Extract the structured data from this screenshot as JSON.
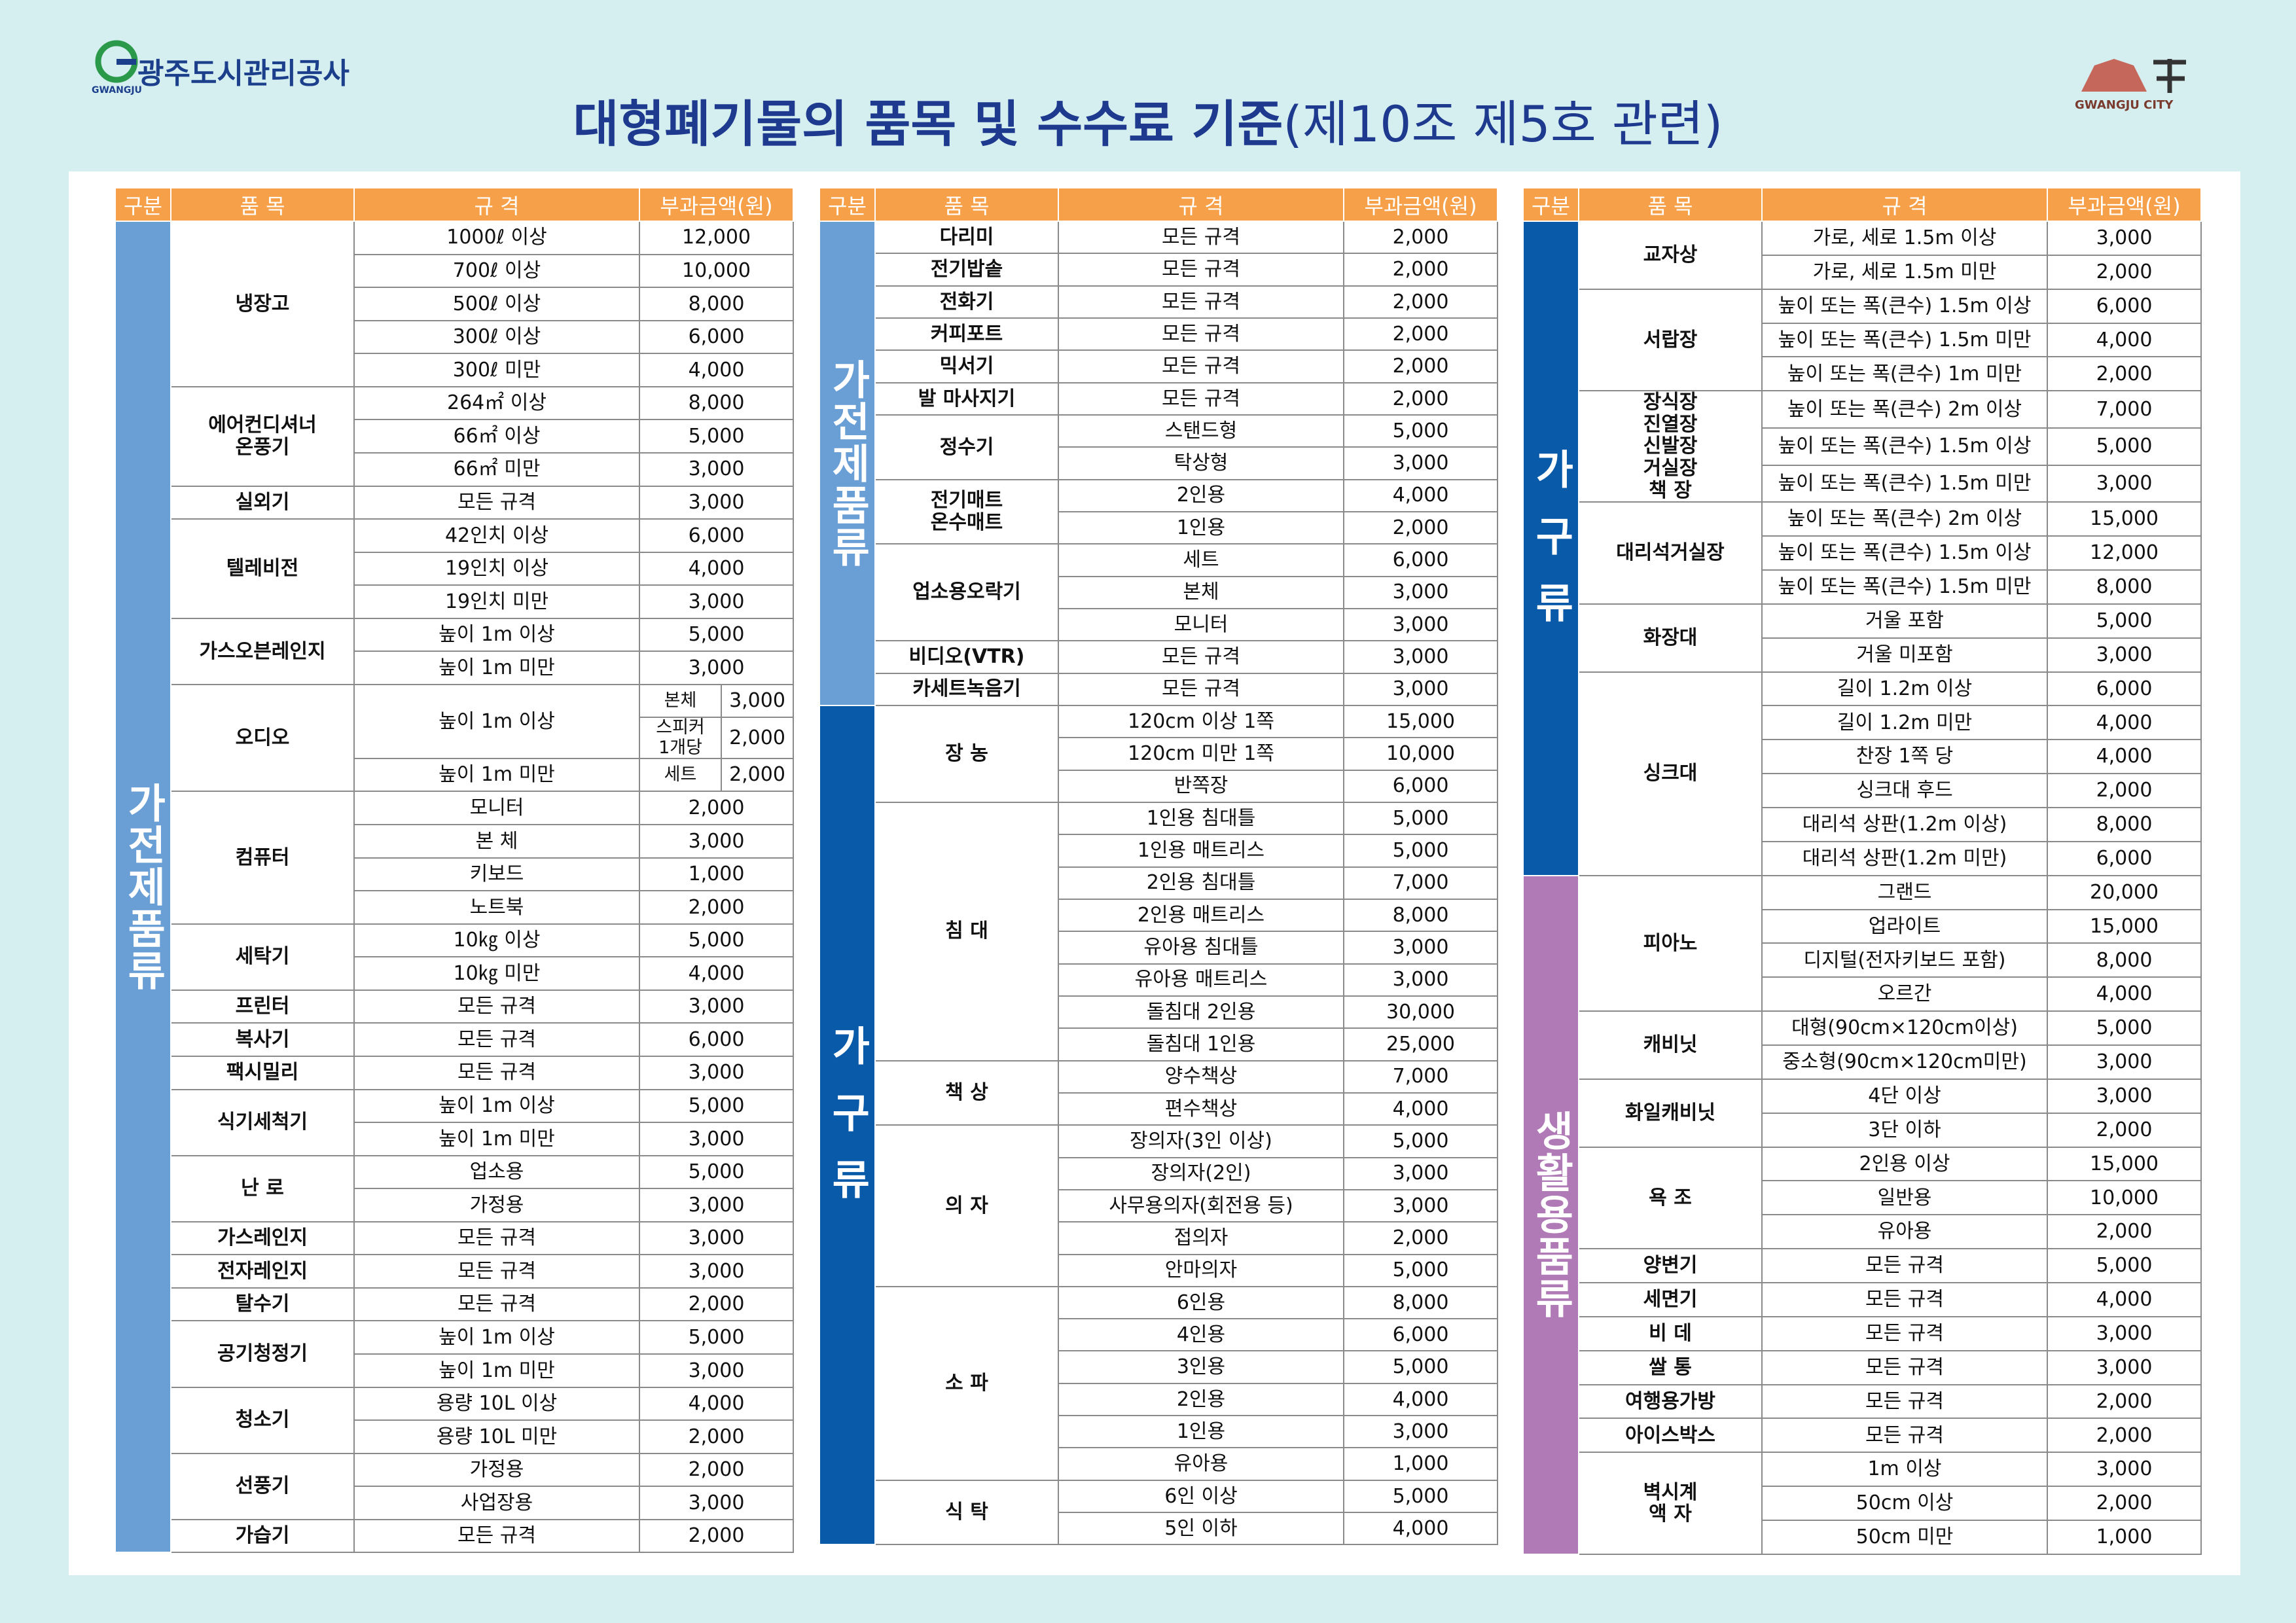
{
  "header": {
    "org": "광주도시관리공사",
    "org_en": "GWANGJU",
    "title": "대형폐기물의 품목 및 수수료 기준",
    "subtitle": "(제10조 제5호 관련)",
    "city": "GWANGJU CITY"
  },
  "tables": [
    {
      "columns": [
        "구분",
        "품 목",
        "규 격",
        "부과금액(원)"
      ],
      "groups": [
        {
          "category": "가전제품류",
          "color": "#6a9fd6",
          "items": [
            {
              "name": "냉장고",
              "rows": [
                {
                  "spec": "1000ℓ 이상",
                  "fee": "12,000"
                },
                {
                  "spec": "700ℓ 이상",
                  "fee": "10,000"
                },
                {
                  "spec": "500ℓ 이상",
                  "fee": "8,000"
                },
                {
                  "spec": "300ℓ 이상",
                  "fee": "6,000"
                },
                {
                  "spec": "300ℓ 미만",
                  "fee": "4,000"
                }
              ]
            },
            {
              "name": "에어컨디셔너\n온풍기",
              "rows": [
                {
                  "spec": "264㎡ 이상",
                  "fee": "8,000"
                },
                {
                  "spec": "66㎡ 이상",
                  "fee": "5,000"
                },
                {
                  "spec": "66㎡ 미만",
                  "fee": "3,000"
                }
              ]
            },
            {
              "name": "실외기",
              "rows": [
                {
                  "spec": "모든 규격",
                  "fee": "3,000"
                }
              ]
            },
            {
              "name": "텔레비전",
              "rows": [
                {
                  "spec": "42인치 이상",
                  "fee": "6,000"
                },
                {
                  "spec": "19인치 이상",
                  "fee": "4,000"
                },
                {
                  "spec": "19인치 미만",
                  "fee": "3,000"
                }
              ]
            },
            {
              "name": "가스오븐레인지",
              "rows": [
                {
                  "spec": "높이 1m 이상",
                  "fee": "5,000"
                },
                {
                  "spec": "높이 1m 미만",
                  "fee": "3,000"
                }
              ]
            },
            {
              "name": "오디오",
              "rows": [
                {
                  "spec": "높이 1m 이상",
                  "sub": "본체",
                  "fee": "3,000"
                },
                {
                  "sub": "스피커\n1개당",
                  "fee": "2,000"
                },
                {
                  "spec": "높이 1m 미만",
                  "sub": "세트",
                  "fee": "2,000"
                }
              ]
            },
            {
              "name": "컴퓨터",
              "rows": [
                {
                  "spec": "모니터",
                  "fee": "2,000"
                },
                {
                  "spec": "본 체",
                  "fee": "3,000"
                },
                {
                  "spec": "키보드",
                  "fee": "1,000"
                },
                {
                  "spec": "노트북",
                  "fee": "2,000"
                }
              ]
            },
            {
              "name": "세탁기",
              "rows": [
                {
                  "spec": "10㎏ 이상",
                  "fee": "5,000"
                },
                {
                  "spec": "10㎏ 미만",
                  "fee": "4,000"
                }
              ]
            },
            {
              "name": "프린터",
              "rows": [
                {
                  "spec": "모든 규격",
                  "fee": "3,000"
                }
              ]
            },
            {
              "name": "복사기",
              "rows": [
                {
                  "spec": "모든 규격",
                  "fee": "6,000"
                }
              ]
            },
            {
              "name": "팩시밀리",
              "rows": [
                {
                  "spec": "모든 규격",
                  "fee": "3,000"
                }
              ]
            },
            {
              "name": "식기세척기",
              "rows": [
                {
                  "spec": "높이 1m 이상",
                  "fee": "5,000"
                },
                {
                  "spec": "높이 1m 미만",
                  "fee": "3,000"
                }
              ]
            },
            {
              "name": "난 로",
              "rows": [
                {
                  "spec": "업소용",
                  "fee": "5,000"
                },
                {
                  "spec": "가정용",
                  "fee": "3,000"
                }
              ]
            },
            {
              "name": "가스레인지",
              "rows": [
                {
                  "spec": "모든 규격",
                  "fee": "3,000"
                }
              ]
            },
            {
              "name": "전자레인지",
              "rows": [
                {
                  "spec": "모든 규격",
                  "fee": "3,000"
                }
              ]
            },
            {
              "name": "탈수기",
              "rows": [
                {
                  "spec": "모든 규격",
                  "fee": "2,000"
                }
              ]
            },
            {
              "name": "공기청정기",
              "rows": [
                {
                  "spec": "높이 1m 이상",
                  "fee": "5,000"
                },
                {
                  "spec": "높이 1m 미만",
                  "fee": "3,000"
                }
              ]
            },
            {
              "name": "청소기",
              "rows": [
                {
                  "spec": "용량 10L 이상",
                  "fee": "4,000"
                },
                {
                  "spec": "용량 10L 미만",
                  "fee": "2,000"
                }
              ]
            },
            {
              "name": "선풍기",
              "rows": [
                {
                  "spec": "가정용",
                  "fee": "2,000"
                },
                {
                  "spec": "사업장용",
                  "fee": "3,000"
                }
              ]
            },
            {
              "name": "가습기",
              "rows": [
                {
                  "spec": "모든 규격",
                  "fee": "2,000"
                }
              ]
            }
          ]
        }
      ]
    },
    {
      "columns": [
        "구분",
        "품 목",
        "규 격",
        "부과금액(원)"
      ],
      "groups": [
        {
          "category": "가전제품류",
          "color": "#6a9fd6",
          "items": [
            {
              "name": "다리미",
              "rows": [
                {
                  "spec": "모든 규격",
                  "fee": "2,000"
                }
              ]
            },
            {
              "name": "전기밥솥",
              "rows": [
                {
                  "spec": "모든 규격",
                  "fee": "2,000"
                }
              ]
            },
            {
              "name": "전화기",
              "rows": [
                {
                  "spec": "모든 규격",
                  "fee": "2,000"
                }
              ]
            },
            {
              "name": "커피포트",
              "rows": [
                {
                  "spec": "모든 규격",
                  "fee": "2,000"
                }
              ]
            },
            {
              "name": "믹서기",
              "rows": [
                {
                  "spec": "모든 규격",
                  "fee": "2,000"
                }
              ]
            },
            {
              "name": "발 마사지기",
              "rows": [
                {
                  "spec": "모든 규격",
                  "fee": "2,000"
                }
              ]
            },
            {
              "name": "정수기",
              "rows": [
                {
                  "spec": "스탠드형",
                  "fee": "5,000"
                },
                {
                  "spec": "탁상형",
                  "fee": "3,000"
                }
              ]
            },
            {
              "name": "전기매트\n온수매트",
              "rows": [
                {
                  "spec": "2인용",
                  "fee": "4,000"
                },
                {
                  "spec": "1인용",
                  "fee": "2,000"
                }
              ]
            },
            {
              "name": "업소용오락기",
              "rows": [
                {
                  "spec": "세트",
                  "fee": "6,000"
                },
                {
                  "spec": "본체",
                  "fee": "3,000"
                },
                {
                  "spec": "모니터",
                  "fee": "3,000"
                }
              ]
            },
            {
              "name": "비디오(VTR)",
              "rows": [
                {
                  "spec": "모든 규격",
                  "fee": "3,000"
                }
              ]
            },
            {
              "name": "카세트녹음기",
              "rows": [
                {
                  "spec": "모든 규격",
                  "fee": "3,000"
                }
              ]
            }
          ]
        },
        {
          "category": "가구류",
          "color": "#0a5aaa",
          "items": [
            {
              "name": "장 농",
              "rows": [
                {
                  "spec": "120cm 이상 1쪽",
                  "fee": "15,000"
                },
                {
                  "spec": "120cm 미만 1쪽",
                  "fee": "10,000"
                },
                {
                  "spec": "반쪽장",
                  "fee": "6,000"
                }
              ]
            },
            {
              "name": "침 대",
              "rows": [
                {
                  "spec": "1인용 침대틀",
                  "fee": "5,000"
                },
                {
                  "spec": "1인용 매트리스",
                  "fee": "5,000"
                },
                {
                  "spec": "2인용 침대틀",
                  "fee": "7,000"
                },
                {
                  "spec": "2인용 매트리스",
                  "fee": "8,000"
                },
                {
                  "spec": "유아용 침대틀",
                  "fee": "3,000"
                },
                {
                  "spec": "유아용 매트리스",
                  "fee": "3,000"
                },
                {
                  "spec": "돌침대 2인용",
                  "fee": "30,000"
                },
                {
                  "spec": "돌침대 1인용",
                  "fee": "25,000"
                }
              ]
            },
            {
              "name": "책 상",
              "rows": [
                {
                  "spec": "양수책상",
                  "fee": "7,000"
                },
                {
                  "spec": "편수책상",
                  "fee": "4,000"
                }
              ]
            },
            {
              "name": "의 자",
              "rows": [
                {
                  "spec": "장의자(3인 이상)",
                  "fee": "5,000"
                },
                {
                  "spec": "장의자(2인)",
                  "fee": "3,000"
                },
                {
                  "spec": "사무용의자(회전용 등)",
                  "fee": "3,000"
                },
                {
                  "spec": "접의자",
                  "fee": "2,000"
                },
                {
                  "spec": "안마의자",
                  "fee": "5,000"
                }
              ]
            },
            {
              "name": "소 파",
              "rows": [
                {
                  "spec": "6인용",
                  "fee": "8,000"
                },
                {
                  "spec": "4인용",
                  "fee": "6,000"
                },
                {
                  "spec": "3인용",
                  "fee": "5,000"
                },
                {
                  "spec": "2인용",
                  "fee": "4,000"
                },
                {
                  "spec": "1인용",
                  "fee": "3,000"
                },
                {
                  "spec": "유아용",
                  "fee": "1,000"
                }
              ]
            },
            {
              "name": "식 탁",
              "rows": [
                {
                  "spec": "6인 이상",
                  "fee": "5,000"
                },
                {
                  "spec": "5인 이하",
                  "fee": "4,000"
                }
              ]
            }
          ]
        }
      ]
    },
    {
      "columns": [
        "구분",
        "품 목",
        "규 격",
        "부과금액(원)"
      ],
      "groups": [
        {
          "category": "가구류",
          "color": "#0a5aaa",
          "items": [
            {
              "name": "교자상",
              "rows": [
                {
                  "spec": "가로, 세로 1.5m 이상",
                  "fee": "3,000"
                },
                {
                  "spec": "가로, 세로 1.5m 미만",
                  "fee": "2,000"
                }
              ]
            },
            {
              "name": "서랍장",
              "rows": [
                {
                  "spec": "높이 또는 폭(큰수) 1.5m 이상",
                  "fee": "6,000"
                },
                {
                  "spec": "높이 또는 폭(큰수) 1.5m 미만",
                  "fee": "4,000"
                },
                {
                  "spec": "높이 또는 폭(큰수) 1m 미만",
                  "fee": "2,000"
                }
              ]
            },
            {
              "name": "장식장\n진열장\n신발장\n거실장\n책 장",
              "rows": [
                {
                  "spec": "높이 또는 폭(큰수) 2m 이상",
                  "fee": "7,000"
                },
                {
                  "spec": "높이 또는 폭(큰수) 1.5m 이상",
                  "fee": "5,000"
                },
                {
                  "spec": "높이 또는 폭(큰수) 1.5m 미만",
                  "fee": "3,000"
                }
              ]
            },
            {
              "name": "대리석거실장",
              "rows": [
                {
                  "spec": "높이 또는 폭(큰수) 2m 이상",
                  "fee": "15,000"
                },
                {
                  "spec": "높이 또는 폭(큰수) 1.5m 이상",
                  "fee": "12,000"
                },
                {
                  "spec": "높이 또는 폭(큰수) 1.5m 미만",
                  "fee": "8,000"
                }
              ]
            },
            {
              "name": "화장대",
              "rows": [
                {
                  "spec": "거울 포함",
                  "fee": "5,000"
                },
                {
                  "spec": "거울 미포함",
                  "fee": "3,000"
                }
              ]
            },
            {
              "name": "싱크대",
              "rows": [
                {
                  "spec": "길이 1.2m 이상",
                  "fee": "6,000"
                },
                {
                  "spec": "길이 1.2m 미만",
                  "fee": "4,000"
                },
                {
                  "spec": "찬장 1쪽 당",
                  "fee": "4,000"
                },
                {
                  "spec": "싱크대 후드",
                  "fee": "2,000"
                },
                {
                  "spec": "대리석 상판(1.2m 이상)",
                  "fee": "8,000"
                },
                {
                  "spec": "대리석 상판(1.2m 미만)",
                  "fee": "6,000"
                }
              ]
            }
          ]
        },
        {
          "category": "생활용품류",
          "color": "#b07ab6",
          "items": [
            {
              "name": "피아노",
              "rows": [
                {
                  "spec": "그랜드",
                  "fee": "20,000"
                },
                {
                  "spec": "업라이트",
                  "fee": "15,000"
                },
                {
                  "spec": "디지털(전자키보드 포함)",
                  "fee": "8,000"
                },
                {
                  "spec": "오르간",
                  "fee": "4,000"
                }
              ]
            },
            {
              "name": "캐비닛",
              "rows": [
                {
                  "spec": "대형(90cm×120cm이상)",
                  "fee": "5,000"
                },
                {
                  "spec": "중소형(90cm×120cm미만)",
                  "fee": "3,000"
                }
              ]
            },
            {
              "name": "화일캐비닛",
              "rows": [
                {
                  "spec": "4단 이상",
                  "fee": "3,000"
                },
                {
                  "spec": "3단 이하",
                  "fee": "2,000"
                }
              ]
            },
            {
              "name": "욕 조",
              "rows": [
                {
                  "spec": "2인용 이상",
                  "fee": "15,000"
                },
                {
                  "spec": "일반용",
                  "fee": "10,000"
                },
                {
                  "spec": "유아용",
                  "fee": "2,000"
                }
              ]
            },
            {
              "name": "양변기",
              "rows": [
                {
                  "spec": "모든 규격",
                  "fee": "5,000"
                }
              ]
            },
            {
              "name": "세면기",
              "rows": [
                {
                  "spec": "모든 규격",
                  "fee": "4,000"
                }
              ]
            },
            {
              "name": "비 데",
              "rows": [
                {
                  "spec": "모든 규격",
                  "fee": "3,000"
                }
              ]
            },
            {
              "name": "쌀 통",
              "rows": [
                {
                  "spec": "모든 규격",
                  "fee": "3,000"
                }
              ]
            },
            {
              "name": "여행용가방",
              "rows": [
                {
                  "spec": "모든 규격",
                  "fee": "2,000"
                }
              ]
            },
            {
              "name": "아이스박스",
              "rows": [
                {
                  "spec": "모든 규격",
                  "fee": "2,000"
                }
              ]
            },
            {
              "name": "벽시계\n액 자",
              "rows": [
                {
                  "spec": "1m 이상",
                  "fee": "3,000"
                },
                {
                  "spec": "50cm 이상",
                  "fee": "2,000"
                },
                {
                  "spec": "50cm 미만",
                  "fee": "1,000"
                }
              ]
            }
          ]
        }
      ]
    }
  ]
}
